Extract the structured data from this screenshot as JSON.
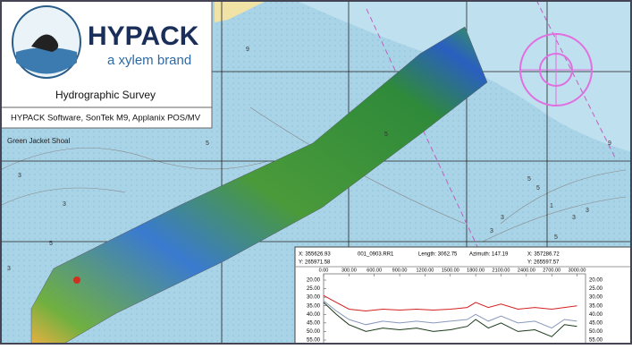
{
  "logo": {
    "brand": "HYPACK",
    "tagline": "a xylem brand"
  },
  "header": {
    "title": "Hydrographic Survey",
    "subtitle": "HYPACK Software, SonTek M9, Applanix POS/MV"
  },
  "map": {
    "place_label": "Green Jacket Shoal",
    "soundings": [
      "5",
      "9",
      "3",
      "3",
      "5",
      "3",
      "5",
      "5",
      "9",
      "3",
      "5",
      "3",
      "3",
      "1",
      "5",
      "3",
      "5"
    ]
  },
  "profile": {
    "start_x": "X: 355626.93",
    "start_y": "Y: 265971.58",
    "line_file": "001_0903.RR1",
    "length": "Length: 3062.75",
    "azimuth": "Azimuth: 147.19",
    "end_x": "X: 357286.72",
    "end_y": "Y: 265597.57",
    "xlim": [
      0,
      3100
    ],
    "ylim": [
      20,
      55
    ],
    "xticks": [
      {
        "value": 0,
        "label": "0.00"
      },
      {
        "value": 300,
        "label": "300.00"
      },
      {
        "value": 600,
        "label": "600.00"
      },
      {
        "value": 900,
        "label": "900.00"
      },
      {
        "value": 1200,
        "label": "1200.00"
      },
      {
        "value": 1500,
        "label": "1500.00"
      },
      {
        "value": 1800,
        "label": "1800.00"
      },
      {
        "value": 2100,
        "label": "2100.00"
      },
      {
        "value": 2400,
        "label": "2400.00"
      },
      {
        "value": 2700,
        "label": "2700.00"
      },
      {
        "value": 3000,
        "label": "3000.00"
      }
    ],
    "yticks": [
      {
        "value": 20,
        "label": "20.00"
      },
      {
        "value": 25,
        "label": "25.00"
      },
      {
        "value": 30,
        "label": "30.00"
      },
      {
        "value": 35,
        "label": "35.00"
      },
      {
        "value": 40,
        "label": "40.00"
      },
      {
        "value": 45,
        "label": "45.00"
      },
      {
        "value": 50,
        "label": "50.00"
      },
      {
        "value": 55,
        "label": "55.00"
      }
    ],
    "x": [
      0,
      150,
      300,
      500,
      700,
      900,
      1100,
      1300,
      1500,
      1700,
      1800,
      1950,
      2100,
      2300,
      2500,
      2700,
      2850,
      3000
    ],
    "series": [
      {
        "color": "#d42020",
        "values": [
          29,
          33,
          37,
          38,
          37,
          37.5,
          37,
          37.5,
          37,
          36,
          33,
          36,
          34,
          37,
          36,
          37,
          36,
          35
        ]
      },
      {
        "color": "#8899bb",
        "values": [
          32,
          38,
          43,
          46,
          44,
          45,
          44,
          45,
          44,
          43,
          40,
          44,
          41,
          45,
          44,
          48,
          43,
          44
        ]
      },
      {
        "color": "#1a3a1a",
        "values": [
          33,
          40,
          46,
          50,
          48,
          49,
          48,
          50,
          49,
          47,
          43,
          48,
          45,
          50,
          49,
          53,
          46,
          47
        ]
      }
    ]
  }
}
